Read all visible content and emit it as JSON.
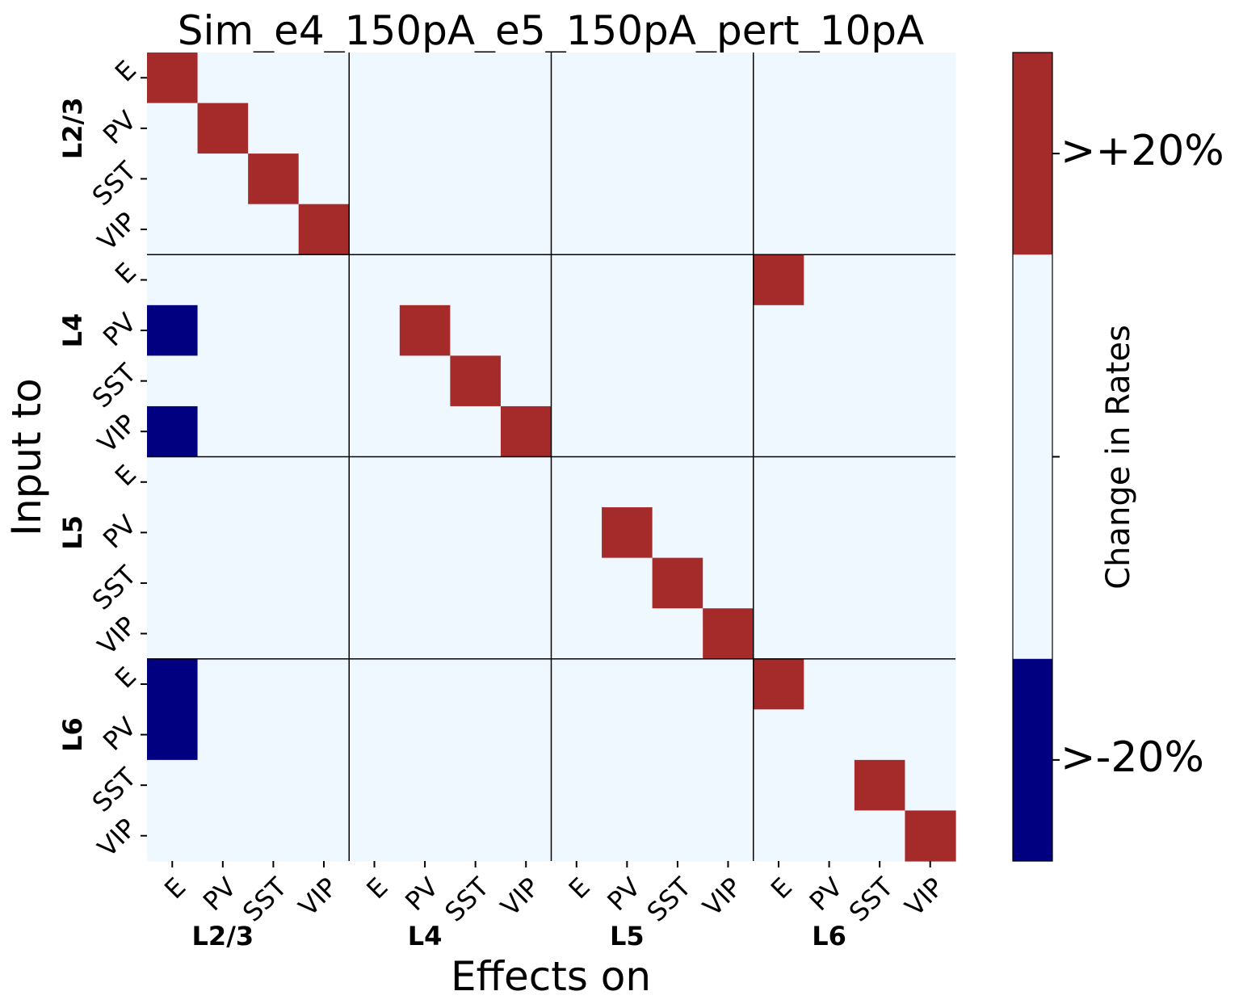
{
  "chart_data": {
    "type": "heatmap",
    "title": "Sim_e4_150pA_e5_150pA_pert_10pA",
    "xlabel": "Effects on",
    "ylabel": "Input to",
    "cell_types": [
      "E",
      "PV",
      "SST",
      "VIP"
    ],
    "layers": [
      "L2/3",
      "L4",
      "L5",
      "L6"
    ],
    "x_tick_labels": [
      "E",
      "PV",
      "SST",
      "VIP",
      "E",
      "PV",
      "SST",
      "VIP",
      "E",
      "PV",
      "SST",
      "VIP",
      "E",
      "PV",
      "SST",
      "VIP"
    ],
    "y_tick_labels": [
      "E",
      "PV",
      "SST",
      "VIP",
      "E",
      "PV",
      "SST",
      "VIP",
      "E",
      "PV",
      "SST",
      "VIP",
      "E",
      "PV",
      "SST",
      "VIP"
    ],
    "value_encoding": {
      "-1": ">-20% decrease",
      "0": "no change",
      "1": ">+20% increase"
    },
    "matrix": [
      [
        1,
        0,
        0,
        0,
        0,
        0,
        0,
        0,
        0,
        0,
        0,
        0,
        0,
        0,
        0,
        0
      ],
      [
        0,
        1,
        0,
        0,
        0,
        0,
        0,
        0,
        0,
        0,
        0,
        0,
        0,
        0,
        0,
        0
      ],
      [
        0,
        0,
        1,
        0,
        0,
        0,
        0,
        0,
        0,
        0,
        0,
        0,
        0,
        0,
        0,
        0
      ],
      [
        0,
        0,
        0,
        1,
        0,
        0,
        0,
        0,
        0,
        0,
        0,
        0,
        0,
        0,
        0,
        0
      ],
      [
        0,
        0,
        0,
        0,
        0,
        0,
        0,
        0,
        0,
        0,
        0,
        0,
        1,
        0,
        0,
        0
      ],
      [
        -1,
        0,
        0,
        0,
        0,
        1,
        0,
        0,
        0,
        0,
        0,
        0,
        0,
        0,
        0,
        0
      ],
      [
        0,
        0,
        0,
        0,
        0,
        0,
        1,
        0,
        0,
        0,
        0,
        0,
        0,
        0,
        0,
        0
      ],
      [
        -1,
        0,
        0,
        0,
        0,
        0,
        0,
        1,
        0,
        0,
        0,
        0,
        0,
        0,
        0,
        0
      ],
      [
        0,
        0,
        0,
        0,
        0,
        0,
        0,
        0,
        0,
        0,
        0,
        0,
        0,
        0,
        0,
        0
      ],
      [
        0,
        0,
        0,
        0,
        0,
        0,
        0,
        0,
        0,
        1,
        0,
        0,
        0,
        0,
        0,
        0
      ],
      [
        0,
        0,
        0,
        0,
        0,
        0,
        0,
        0,
        0,
        0,
        1,
        0,
        0,
        0,
        0,
        0
      ],
      [
        0,
        0,
        0,
        0,
        0,
        0,
        0,
        0,
        0,
        0,
        0,
        1,
        0,
        0,
        0,
        0
      ],
      [
        -1,
        0,
        0,
        0,
        0,
        0,
        0,
        0,
        0,
        0,
        0,
        0,
        1,
        0,
        0,
        0
      ],
      [
        -1,
        0,
        0,
        0,
        0,
        0,
        0,
        0,
        0,
        0,
        0,
        0,
        0,
        0,
        0,
        0
      ],
      [
        0,
        0,
        0,
        0,
        0,
        0,
        0,
        0,
        0,
        0,
        0,
        0,
        0,
        0,
        1,
        0
      ],
      [
        0,
        0,
        0,
        0,
        0,
        0,
        0,
        0,
        0,
        0,
        0,
        0,
        0,
        0,
        0,
        1
      ]
    ],
    "colorbar": {
      "label": "Change in Rates",
      "tick_labels": [
        ">+20%",
        ">-20%"
      ],
      "segments": [
        {
          "value": 1,
          "color": "#a52a2a"
        },
        {
          "value": 0,
          "color": "#f0f8ff"
        },
        {
          "value": 0,
          "color": "#f0f8ff"
        },
        {
          "value": -1,
          "color": "#000080"
        }
      ]
    },
    "colors": {
      "positive": "#a52a2a",
      "neutral": "#f0f8ff",
      "negative": "#000080"
    },
    "grid": "layer separators"
  }
}
